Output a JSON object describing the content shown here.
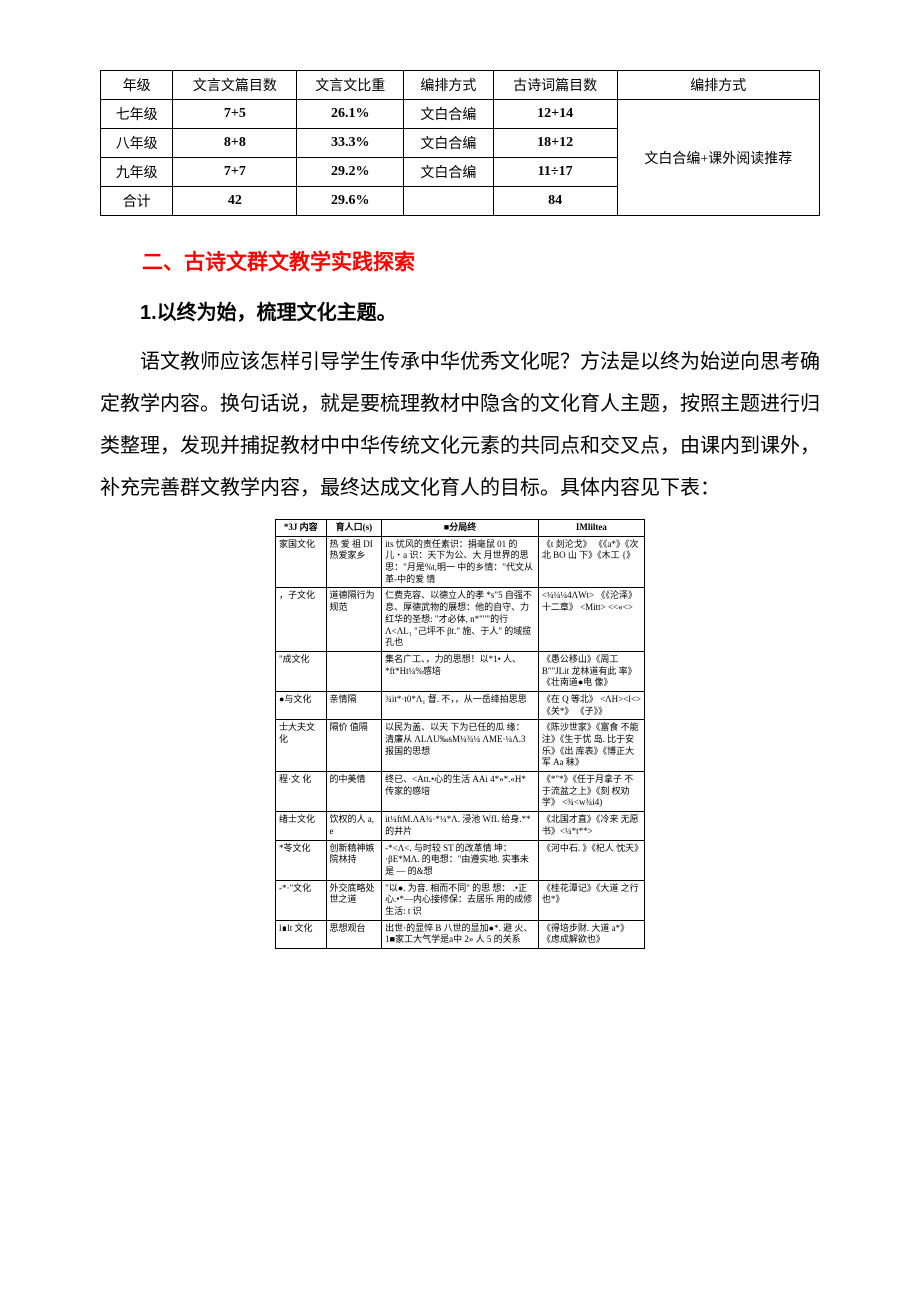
{
  "table1": {
    "headers": [
      "年级",
      "文言文篇目数",
      "文言文比重",
      "编排方式",
      "古诗词篇目数",
      "编排方式"
    ],
    "rows": [
      {
        "c1": "七年级",
        "c2": "7+5",
        "c3": "26.1%",
        "c4": "文白合编",
        "c5": "12+14"
      },
      {
        "c1": "八年级",
        "c2": "8+8",
        "c3": "33.3%",
        "c4": "文白合编",
        "c5": "18+12"
      },
      {
        "c1": "九年级",
        "c2": "7+7",
        "c3": "29.2%",
        "c4": "文白合编",
        "c5": "11÷17"
      },
      {
        "c1": "合计",
        "c2": "42",
        "c3": "29.6%",
        "c4": "",
        "c5": "84"
      }
    ],
    "merged_col6": "文白合编+课外阅读推荐"
  },
  "heading1": "二、古诗文群文教学实践探索",
  "heading2": "1.以终为始，梳理文化主题。",
  "para": "语文教师应该怎样引导学生传承中华优秀文化呢？方法是以终为始逆向思考确定教学内容。换句话说，就是要梳理教材中隐含的文化育人主题，按照主题进行归类整理，发现并捕捉教材中中华传统文化元素的共同点和交叉点，由课内到课外，补充完善群文教学内容，最终达成文化育人的目标。具体内容见下表：",
  "table2": {
    "headers": [
      "*3J 内容",
      "育人口(s)",
      "■分局终",
      "IMliltea"
    ],
    "rows": [
      {
        "c1": "家国文化",
        "c2": "热 爱 祖 DI 热爱家乡",
        "c3": "its 忧风的责任素识：捐毫鼠 01 的儿・a 识：天下为公、大 月世界的思思：\"月是%t,明一 中的乡情：\"代文从革-中的爱 情",
        "c4": "《t 剡沦戈》 《《a*》《次北 BO 山 下》《木工 {》"
      },
      {
        "c1": "，子文化",
        "c2": "道德隔行为 规范",
        "c3": "仁费克容、以德立人的孝 *s\"5 自强不息、厚德武物的展想：他的自守、力红华的圣想: \"才必体, n*\"\"\"的行 Λ<ΛL₁ \"己坪不 βt.\" 施、于人\" 的域揽孔也",
        "c4": "<¼¼¼4ΛWt> 《《沦泽》十二章》 <Mitt> <<«<>"
      },
      {
        "c1": "\"成文化",
        "c2": "",
        "c3": "集名广工、，力的思想！以*1• 人、*ft*Ht¼%感培",
        "c4": "《愚公移山》《周工 B\"\"JLit 龙林道有此 率》《壮南道●电 像》"
      },
      {
        "c1": "●与文化",
        "c2": "亲情隔",
        "c3": "¾it*·t0*Λ₁ 督. 不，，从一岳绛拍思思",
        "c4": "《在 Q 等北》 <ΛH><l<> 《关*》 《子》》"
      },
      {
        "c1": "士大夫文化",
        "c2": "隔价 值隔",
        "c3": "以民为盖、以天 下为已任的瓜 缘： 清廉从 ΛLΛU‰sM¼¾¼ ΛME·¼Λ.3 报国的思想",
        "c4": "《陈沙世家》《富食 不能注》《生于忧 岛. 比于安乐》《出 库表》《博正大军 Aa 秣》"
      },
      {
        "c1": "程·文 化",
        "c2": "的中美情",
        "c3": "终已、<Att.•心的生活 AAi 4*»*.«H* 传家的感培",
        "c4": "《*\"*》《任于月拿子 不于流盆之上》《刻 权劝学》 <¾<w¾i4)"
      },
      {
        "c1": "绪士文化",
        "c2": "饮权的人 a, e",
        "c3": "it¼ftM.ΛA¾·*¼*Λ. 浸池 WfL 给身.**的井片",
        "c4": "《北国才直》《冷来 无愿书》<¼*t**>"
      },
      {
        "c1": "*苓文化",
        "c2": "创新精神嫉 院林持",
        "c3": "-*<Λ<. 与时较 ST 的改革情 坤：·βE*MΛ. 的电想：\"由遵实地. 实事未是 — 的&想",
        "c4": "《河中石. 》《杞人 忱天》"
      },
      {
        "c1": "-*·\"文化",
        "c2": "外交底略处 世之道",
        "c3": "\"以●. 为音. 相而不同\" 的思 想： .•正心.•*—内心接修保：去居乐 用的成修生活: t 识",
        "c4": "《桂花潭记》《大道 之行也*》"
      },
      {
        "c1": "l∎lt 文化",
        "c2": "思想观台",
        "c3": "出世·的显悴 B 八世的显加●*. 避 火、1■家工大气学是a中 2» 人 5 的关系",
        "c4": "《得培步财. 大道 a*》 《虑成解欲也》"
      }
    ]
  },
  "colors": {
    "red": "#ff0000",
    "black": "#000000",
    "bg": "#ffffff"
  }
}
